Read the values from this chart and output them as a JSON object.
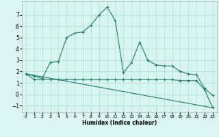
{
  "title": "",
  "xlabel": "Humidex (Indice chaleur)",
  "bg_color": "#d8f5f0",
  "grid_color": "#b8deda",
  "line_color": "#1a7a6e",
  "xlim": [
    -0.5,
    23.5
  ],
  "ylim": [
    -1.6,
    8.2
  ],
  "yticks": [
    -1,
    0,
    1,
    2,
    3,
    4,
    5,
    6,
    7
  ],
  "xticks": [
    0,
    1,
    2,
    3,
    4,
    5,
    6,
    7,
    8,
    9,
    10,
    11,
    12,
    13,
    14,
    15,
    16,
    17,
    18,
    19,
    20,
    21,
    22,
    23
  ],
  "series1_x": [
    0,
    1,
    2,
    3,
    4,
    5,
    6,
    7,
    8,
    9,
    10,
    11,
    12,
    13,
    14,
    15,
    16,
    17,
    18,
    19,
    20,
    21,
    22,
    23
  ],
  "series1_y": [
    1.8,
    1.6,
    1.4,
    2.8,
    2.9,
    5.0,
    5.4,
    5.5,
    6.1,
    7.0,
    7.7,
    6.5,
    1.9,
    2.8,
    4.6,
    3.0,
    2.6,
    2.5,
    2.5,
    2.0,
    1.8,
    1.7,
    0.5,
    -0.1
  ],
  "series2_x": [
    0,
    1,
    2,
    3,
    4,
    5,
    6,
    7,
    8,
    9,
    10,
    11,
    12,
    13,
    14,
    15,
    16,
    17,
    18,
    19,
    20,
    21,
    22,
    23
  ],
  "series2_y": [
    1.8,
    1.3,
    1.3,
    1.3,
    1.3,
    1.3,
    1.3,
    1.3,
    1.3,
    1.3,
    1.3,
    1.3,
    1.3,
    1.3,
    1.3,
    1.3,
    1.3,
    1.3,
    1.3,
    1.2,
    1.2,
    1.2,
    0.4,
    -1.2
  ],
  "series3_x": [
    0,
    23
  ],
  "series3_y": [
    1.8,
    -1.2
  ]
}
